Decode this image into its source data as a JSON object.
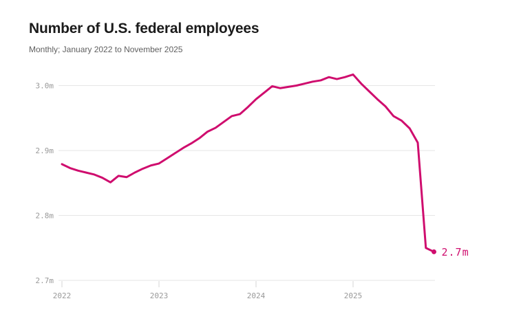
{
  "page": {
    "title": "Number of U.S. federal employees",
    "subtitle": "Monthly; January 2022 to November 2025"
  },
  "colors": {
    "background": "#ffffff",
    "line": "#cf0d6e",
    "grid": "#e6e6e6",
    "tick": "#d4d4d4",
    "axis_text": "#999999",
    "title_text": "#1b1b1b",
    "subtitle_text": "#5f5f5f"
  },
  "chart_data": {
    "type": "line",
    "title": "Number of U.S. federal employees",
    "subtitle": "Monthly; January 2022 to November 2025",
    "unit": "millions of employees",
    "grid": true,
    "legend": false,
    "ylim": [
      2.7,
      3.05
    ],
    "x": [
      "2022-01",
      "2022-02",
      "2022-03",
      "2022-04",
      "2022-05",
      "2022-06",
      "2022-07",
      "2022-08",
      "2022-09",
      "2022-10",
      "2022-11",
      "2022-12",
      "2023-01",
      "2023-02",
      "2023-03",
      "2023-04",
      "2023-05",
      "2023-06",
      "2023-07",
      "2023-08",
      "2023-09",
      "2023-10",
      "2023-11",
      "2023-12",
      "2024-01",
      "2024-02",
      "2024-03",
      "2024-04",
      "2024-05",
      "2024-06",
      "2024-07",
      "2024-08",
      "2024-09",
      "2024-10",
      "2024-11",
      "2024-12",
      "2025-01",
      "2025-02",
      "2025-03",
      "2025-04",
      "2025-05",
      "2025-06",
      "2025-07",
      "2025-08",
      "2025-09",
      "2025-10",
      "2025-11"
    ],
    "values": [
      2.879,
      2.873,
      2.869,
      2.866,
      2.863,
      2.858,
      2.851,
      2.861,
      2.859,
      2.866,
      2.872,
      2.877,
      2.88,
      2.888,
      2.896,
      2.904,
      2.911,
      2.919,
      2.929,
      2.935,
      2.944,
      2.953,
      2.956,
      2.967,
      2.979,
      2.989,
      2.999,
      2.996,
      2.998,
      3.0,
      3.003,
      3.006,
      3.008,
      3.013,
      3.01,
      3.013,
      3.017,
      3.003,
      2.991,
      2.979,
      2.968,
      2.953,
      2.946,
      2.934,
      2.912,
      2.75,
      2.744
    ],
    "yticks": [
      {
        "value": 3.0,
        "label": "3.0m"
      },
      {
        "value": 2.9,
        "label": "2.9m"
      },
      {
        "value": 2.8,
        "label": "2.8m"
      },
      {
        "value": 2.7,
        "label": "2.7m"
      }
    ],
    "xticks": [
      {
        "x": "2022-01",
        "label": "2022"
      },
      {
        "x": "2023-01",
        "label": "2023"
      },
      {
        "x": "2024-01",
        "label": "2024"
      },
      {
        "x": "2025-01",
        "label": "2025"
      }
    ],
    "end_label": "2.7m"
  }
}
